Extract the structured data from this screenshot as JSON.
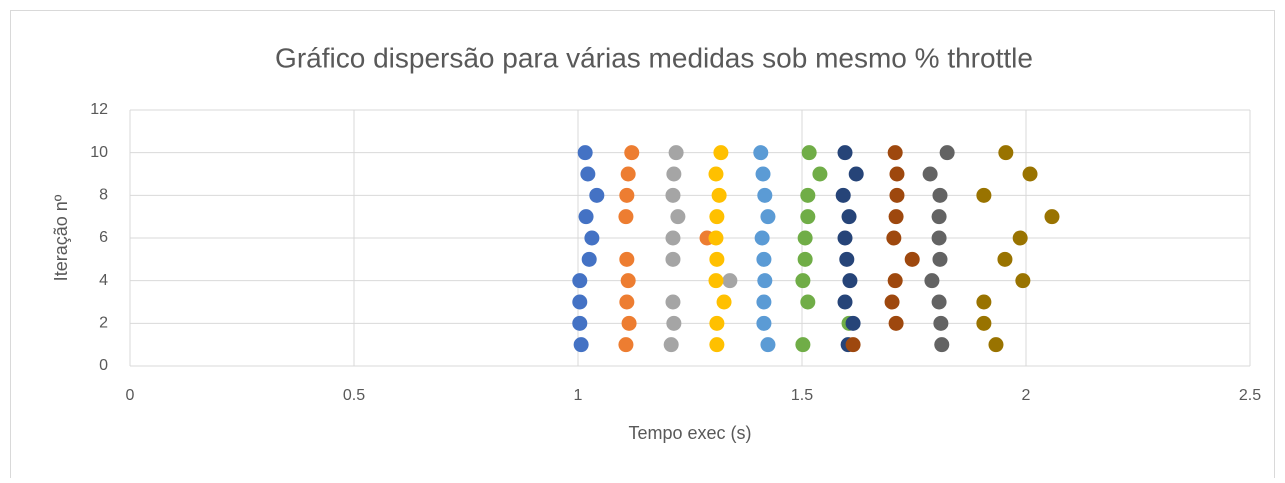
{
  "chart_data": {
    "type": "scatter",
    "title": "Gráfico dispersão para várias medidas sob mesmo % throttle",
    "x_label": "Tempo exec (s)",
    "y_label": "Iteração nº",
    "xlim": [
      0,
      2.5
    ],
    "xticks": [
      0,
      0.5,
      1,
      1.5,
      2,
      2.5
    ],
    "ylim": [
      0,
      12
    ],
    "yticks": [
      0,
      2,
      4,
      6,
      8,
      10,
      12
    ],
    "grid": true,
    "series": [
      {
        "color": "#4472c4",
        "x": [
          1.007,
          1.004,
          1.004,
          1.004,
          1.025,
          1.031,
          1.018,
          1.042,
          1.022,
          1.016
        ],
        "y": [
          1,
          2,
          3,
          4,
          5,
          6,
          7,
          8,
          9,
          10
        ]
      },
      {
        "color": "#ed7d31",
        "x": [
          1.107,
          1.114,
          1.109,
          1.112,
          1.109,
          1.288,
          1.107,
          1.109,
          1.112,
          1.12
        ],
        "y": [
          1,
          2,
          3,
          4,
          5,
          6,
          7,
          8,
          9,
          10
        ]
      },
      {
        "color": "#a5a5a5",
        "x": [
          1.208,
          1.214,
          1.212,
          1.339,
          1.212,
          1.212,
          1.223,
          1.212,
          1.214,
          1.219
        ],
        "y": [
          1,
          2,
          3,
          4,
          5,
          6,
          7,
          8,
          9,
          10
        ]
      },
      {
        "color": "#ffc000",
        "x": [
          1.31,
          1.31,
          1.326,
          1.308,
          1.31,
          1.308,
          1.31,
          1.315,
          1.308,
          1.319
        ],
        "y": [
          1,
          2,
          3,
          4,
          5,
          6,
          7,
          8,
          9,
          10
        ]
      },
      {
        "color": "#5b9bd5",
        "x": [
          1.424,
          1.415,
          1.415,
          1.417,
          1.415,
          1.411,
          1.424,
          1.417,
          1.413,
          1.408
        ],
        "y": [
          1,
          2,
          3,
          4,
          5,
          6,
          7,
          8,
          9,
          10
        ]
      },
      {
        "color": "#70ad47",
        "x": [
          1.502,
          1.605,
          1.513,
          1.502,
          1.507,
          1.507,
          1.513,
          1.513,
          1.54,
          1.516
        ],
        "y": [
          1,
          2,
          3,
          4,
          5,
          6,
          7,
          8,
          9,
          10
        ]
      },
      {
        "color": "#264478",
        "x": [
          1.603,
          1.614,
          1.596,
          1.607,
          1.6,
          1.596,
          1.605,
          1.592,
          1.621,
          1.596
        ],
        "y": [
          1,
          2,
          3,
          4,
          5,
          6,
          7,
          8,
          9,
          10
        ]
      },
      {
        "color": "#9e480e",
        "x": [
          1.614,
          1.71,
          1.701,
          1.708,
          1.746,
          1.705,
          1.71,
          1.712,
          1.712,
          1.708
        ],
        "y": [
          1,
          2,
          3,
          4,
          5,
          6,
          7,
          8,
          9,
          10
        ]
      },
      {
        "color": "#636363",
        "x": [
          1.812,
          1.81,
          1.806,
          1.79,
          1.808,
          1.806,
          1.806,
          1.808,
          1.786,
          1.824
        ],
        "y": [
          1,
          2,
          3,
          4,
          5,
          6,
          7,
          8,
          9,
          10
        ]
      },
      {
        "color": "#997300",
        "x": [
          1.933,
          1.906,
          1.906,
          1.993,
          1.953,
          1.987,
          2.058,
          1.906,
          2.009,
          1.955
        ],
        "y": [
          1,
          2,
          3,
          4,
          5,
          6,
          7,
          8,
          9,
          10
        ]
      }
    ]
  }
}
